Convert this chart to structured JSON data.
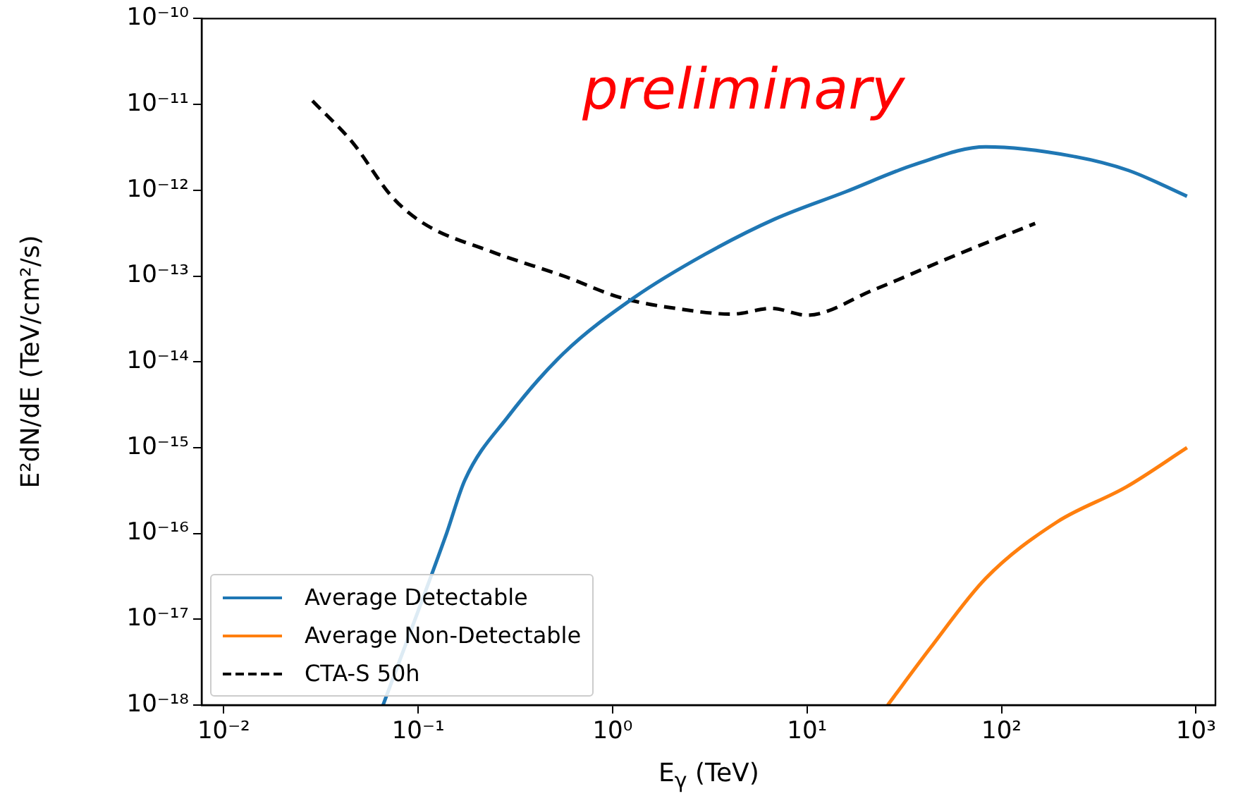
{
  "chart_data": {
    "type": "line",
    "xlabel": "E$_{γ}$ (TeV)",
    "ylabel": "E²dN/dE (TeV/cm²/s)",
    "log": "xy",
    "grid": false,
    "legend": "bottom left",
    "marker": "none",
    "annotations": [
      "preliminary"
    ],
    "xlim": [
      0.0077,
      1260
    ],
    "ylim": [
      1e-18,
      1e-10
    ],
    "xticks": [
      {
        "value": 0.01,
        "label": "10⁻²"
      },
      {
        "value": 0.1,
        "label": "10⁻¹"
      },
      {
        "value": 1,
        "label": "10⁰"
      },
      {
        "value": 10,
        "label": "10¹"
      },
      {
        "value": 100,
        "label": "10²"
      },
      {
        "value": 1000,
        "label": "10³"
      }
    ],
    "yticks": [
      {
        "value": 1e-18,
        "label": "10⁻¹⁸"
      },
      {
        "value": 1e-17,
        "label": "10⁻¹⁷"
      },
      {
        "value": 1e-16,
        "label": "10⁻¹⁶"
      },
      {
        "value": 1e-15,
        "label": "10⁻¹⁵"
      },
      {
        "value": 1e-14,
        "label": "10⁻¹⁴"
      },
      {
        "value": 1e-13,
        "label": "10⁻¹³"
      },
      {
        "value": 1e-12,
        "label": "10⁻¹²"
      },
      {
        "value": 1e-11,
        "label": "10⁻¹¹"
      },
      {
        "value": 1e-10,
        "label": "10⁻¹⁰"
      }
    ],
    "series": [
      {
        "name": "Average Detectable",
        "color": "#1f77b4",
        "line_style": "solid",
        "x": [
          0.066,
          0.14,
          0.174,
          0.29,
          0.56,
          1.29,
          3.0,
          6.8,
          15.8,
          36,
          83,
          230,
          450,
          900
        ],
        "values": [
          1e-18,
          1e-16,
          4.2e-16,
          2.3e-15,
          1.26e-14,
          5.6e-14,
          1.8e-13,
          4.6e-13,
          9.6e-13,
          2e-12,
          3.2e-12,
          2.5e-12,
          1.7e-12,
          8.5e-13
        ]
      },
      {
        "name": "Average Non-Detectable",
        "color": "#ff7f0e",
        "line_style": "solid",
        "x": [
          26,
          43,
          83,
          192,
          440,
          900
        ],
        "values": [
          1e-18,
          4.6e-18,
          3e-17,
          1.35e-16,
          3.5e-16,
          1e-15
        ]
      },
      {
        "name": "CTA-S 50h",
        "color": "#000000",
        "line_style": "dashed",
        "x": [
          0.0286,
          0.046,
          0.073,
          0.105,
          0.242,
          0.56,
          1.1,
          2.1,
          4.1,
          6.6,
          10,
          22,
          60,
          149
        ],
        "values": [
          1.1e-11,
          3.6e-12,
          8.5e-13,
          4.2e-13,
          1.9e-13,
          1e-13,
          5.6e-14,
          4.2e-14,
          3.6e-14,
          4.2e-14,
          3.5e-14,
          6.9e-14,
          1.8e-13,
          4.1e-13
        ]
      }
    ]
  }
}
